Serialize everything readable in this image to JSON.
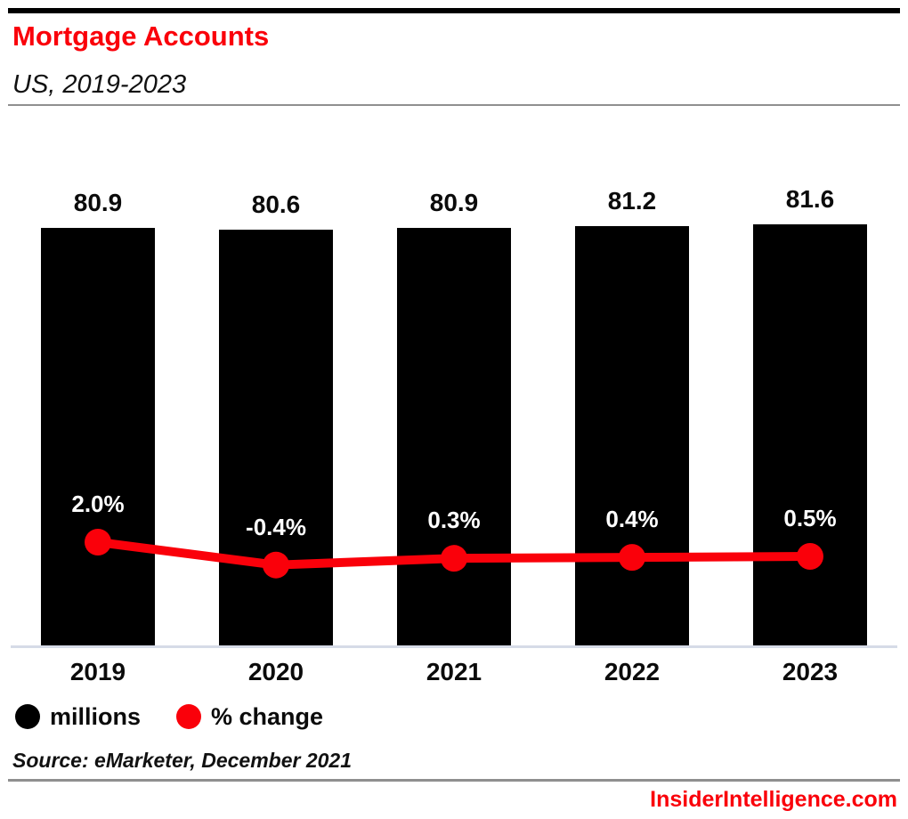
{
  "header": {
    "title": "Mortgage Accounts",
    "subtitle": "US, 2019-2023"
  },
  "chart_data": {
    "type": "bar",
    "title": "Mortgage Accounts",
    "subtitle": "US, 2019-2023",
    "categories": [
      "2019",
      "2020",
      "2021",
      "2022",
      "2023"
    ],
    "series": [
      {
        "name": "millions",
        "type": "bar",
        "color": "#000000",
        "values": [
          80.9,
          80.6,
          80.9,
          81.2,
          81.6
        ],
        "labels": [
          "80.9",
          "80.6",
          "80.9",
          "81.2",
          "81.6"
        ]
      },
      {
        "name": "% change",
        "type": "line",
        "color": "#fa000a",
        "values": [
          2.0,
          -0.4,
          0.3,
          0.4,
          0.5
        ],
        "labels": [
          "2.0%",
          "-0.4%",
          "0.3%",
          "0.4%",
          "0.5%"
        ]
      }
    ],
    "xlabel": "",
    "ylabel": "",
    "ylim_bar": [
      0,
      84.5
    ],
    "grid": false,
    "legend_position": "bottom"
  },
  "legend": {
    "items": [
      {
        "label": "millions",
        "color": "#000000"
      },
      {
        "label": "% change",
        "color": "#fa000a"
      }
    ]
  },
  "footer": {
    "source": "Source: eMarketer, December 2021",
    "brand": "InsiderIntelligence.com"
  },
  "colors": {
    "accent_red": "#fa000a",
    "bar_black": "#000000",
    "axis_line": "#d6dbe7",
    "rule_gray": "#8f8f8f",
    "background": "#ffffff"
  }
}
